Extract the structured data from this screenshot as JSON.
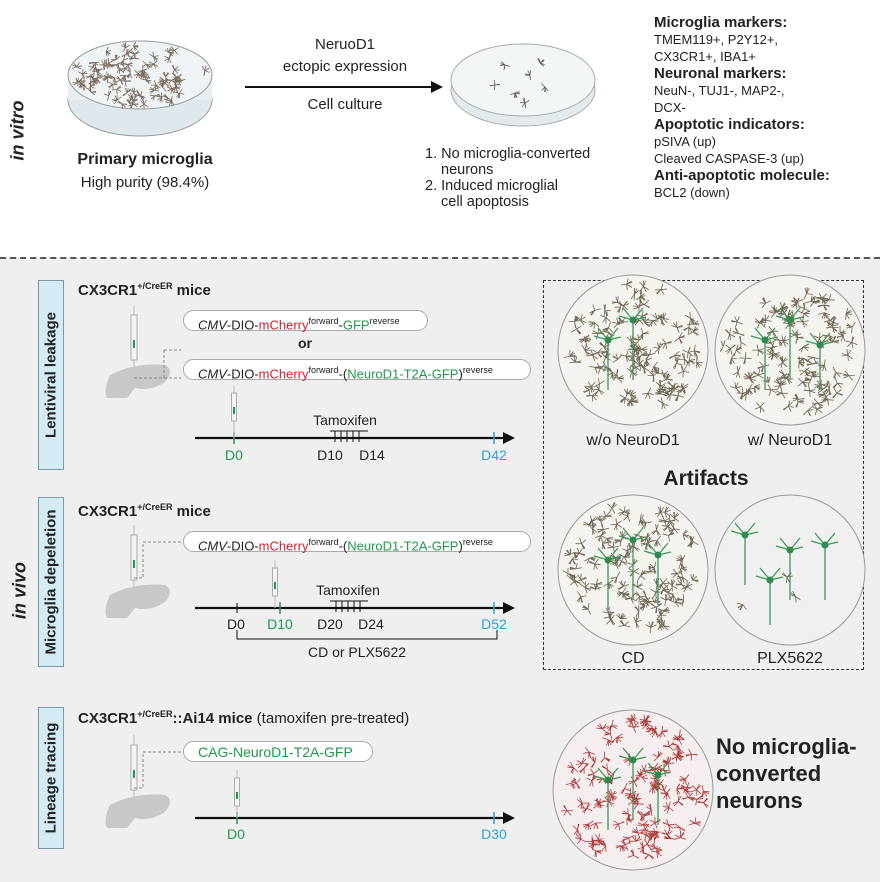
{
  "in_vitro": {
    "label": "in vitro",
    "dish1_title": "Primary microglia",
    "dish1_sub": "High purity (98.4%)",
    "arrow_top1": "NeruoD1",
    "arrow_top2": "ectopic expression",
    "arrow_bottom": "Cell culture",
    "results": [
      "1. No microglia-converted",
      "neurons",
      "2. Induced microglial",
      "cell apoptosis"
    ],
    "markers": [
      {
        "heading": "Microglia markers:",
        "lines": [
          "TMEM119+, P2Y12+,",
          "CX3CR1+, IBA1+"
        ]
      },
      {
        "heading": "Neuronal markers:",
        "lines": [
          "NeuN-, TUJ1-, MAP2-,",
          "DCX-"
        ]
      },
      {
        "heading": "Apoptotic indicators:",
        "lines": [
          "pSIVA (up)",
          "Cleaved CASPASE-3 (up)"
        ]
      },
      {
        "heading": "Anti-apoptotic molecule:",
        "lines": [
          "BCL2 (down)"
        ]
      }
    ]
  },
  "in_vivo": {
    "label": "in vivo",
    "lentiviral": {
      "section": "Lentiviral leakage",
      "mouse": "CX3CR1",
      "sup": "+/CreER",
      "mouse_suffix": " mice",
      "or": "or",
      "tamoxifen": "Tamoxifen",
      "days": {
        "d0": "D0",
        "d10": "D10",
        "d14": "D14",
        "d42": "D42"
      }
    },
    "depletion": {
      "section": "Microglia depeletion",
      "mouse": "CX3CR1",
      "sup": "+/CreER",
      "mouse_suffix": " mice",
      "tamoxifen": "Tamoxifen",
      "days": {
        "d0": "D0",
        "d10": "D10",
        "d20": "D20",
        "d24": "D24",
        "d52": "D52"
      },
      "bracket": "CD or PLX5622"
    },
    "lineage": {
      "section": "Lineage tracing",
      "mouse": "CX3CR1",
      "sup": "+/CreER",
      "mouse_suffix": "::Ai14 mice",
      "note": " (tamoxifen pre-treated)",
      "construct": "CAG-NeuroD1-T2A-GFP",
      "days": {
        "d0": "D0",
        "d30": "D30"
      },
      "result": [
        "No microglia-",
        "converted",
        "neurons"
      ]
    },
    "construct": {
      "cmv": "CMV",
      "dio": "-DIO-",
      "mcherry": "mCherry",
      "fwd": "forward",
      "dash": "-",
      "gfp": "GFP",
      "open": "(",
      "neurod": "NeuroD1-T2A-GFP",
      "close": ")",
      "rev": "reverse"
    },
    "artifacts": {
      "title": "Artifacts",
      "labels": [
        "w/o NeuroD1",
        "w/ NeuroD1",
        "CD",
        "PLX5622"
      ]
    }
  },
  "colors": {
    "red": "#d11f2c",
    "green": "#1f9a4a",
    "blue": "#2ca2d8",
    "section_bg": "#d5ebf3"
  }
}
